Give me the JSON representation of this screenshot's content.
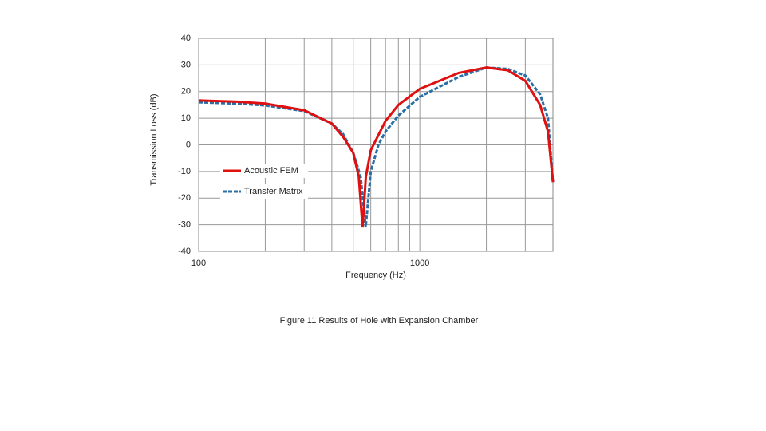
{
  "chart_data": {
    "type": "line",
    "xlabel": "Frequency (Hz)",
    "ylabel": "Transmission Loss (dB)",
    "caption": "Figure 11 Results of Hole with Expansion Chamber",
    "xscale": "log",
    "xlim": [
      100,
      4000
    ],
    "ylim": [
      -40,
      40
    ],
    "xticks": [
      100,
      1000
    ],
    "xminor_grid": [
      200,
      300,
      400,
      500,
      600,
      700,
      800,
      900,
      2000,
      3000
    ],
    "yticks": [
      -40,
      -30,
      -20,
      -10,
      0,
      10,
      20,
      30,
      40
    ],
    "grid": true,
    "legend": "lower left",
    "series": [
      {
        "name": "Acoustic FEM",
        "color": "#e01010",
        "dash": false,
        "x": [
          100,
          150,
          200,
          300,
          400,
          450,
          500,
          530,
          551,
          570,
          600,
          700,
          800,
          1000,
          1500,
          2000,
          2500,
          3000,
          3500,
          3800,
          4000
        ],
        "values": [
          16.7,
          16.2,
          15.5,
          13,
          8,
          3,
          -3,
          -12,
          -31,
          -12,
          -2,
          9,
          15,
          21,
          27,
          29,
          28,
          24,
          15,
          5,
          -14
        ]
      },
      {
        "name": "Transfer Matrix",
        "color": "#2a6ea6",
        "dash": true,
        "x": [
          100,
          150,
          200,
          300,
          400,
          450,
          500,
          540,
          569,
          600,
          650,
          700,
          800,
          1000,
          1500,
          2000,
          2500,
          3000,
          3500,
          3800,
          4000
        ],
        "values": [
          16,
          15.5,
          14.8,
          12.7,
          8,
          4,
          -3,
          -12,
          -31,
          -10,
          0,
          5,
          11,
          18,
          25.5,
          29,
          28.5,
          26,
          19,
          10,
          -14
        ]
      }
    ]
  }
}
